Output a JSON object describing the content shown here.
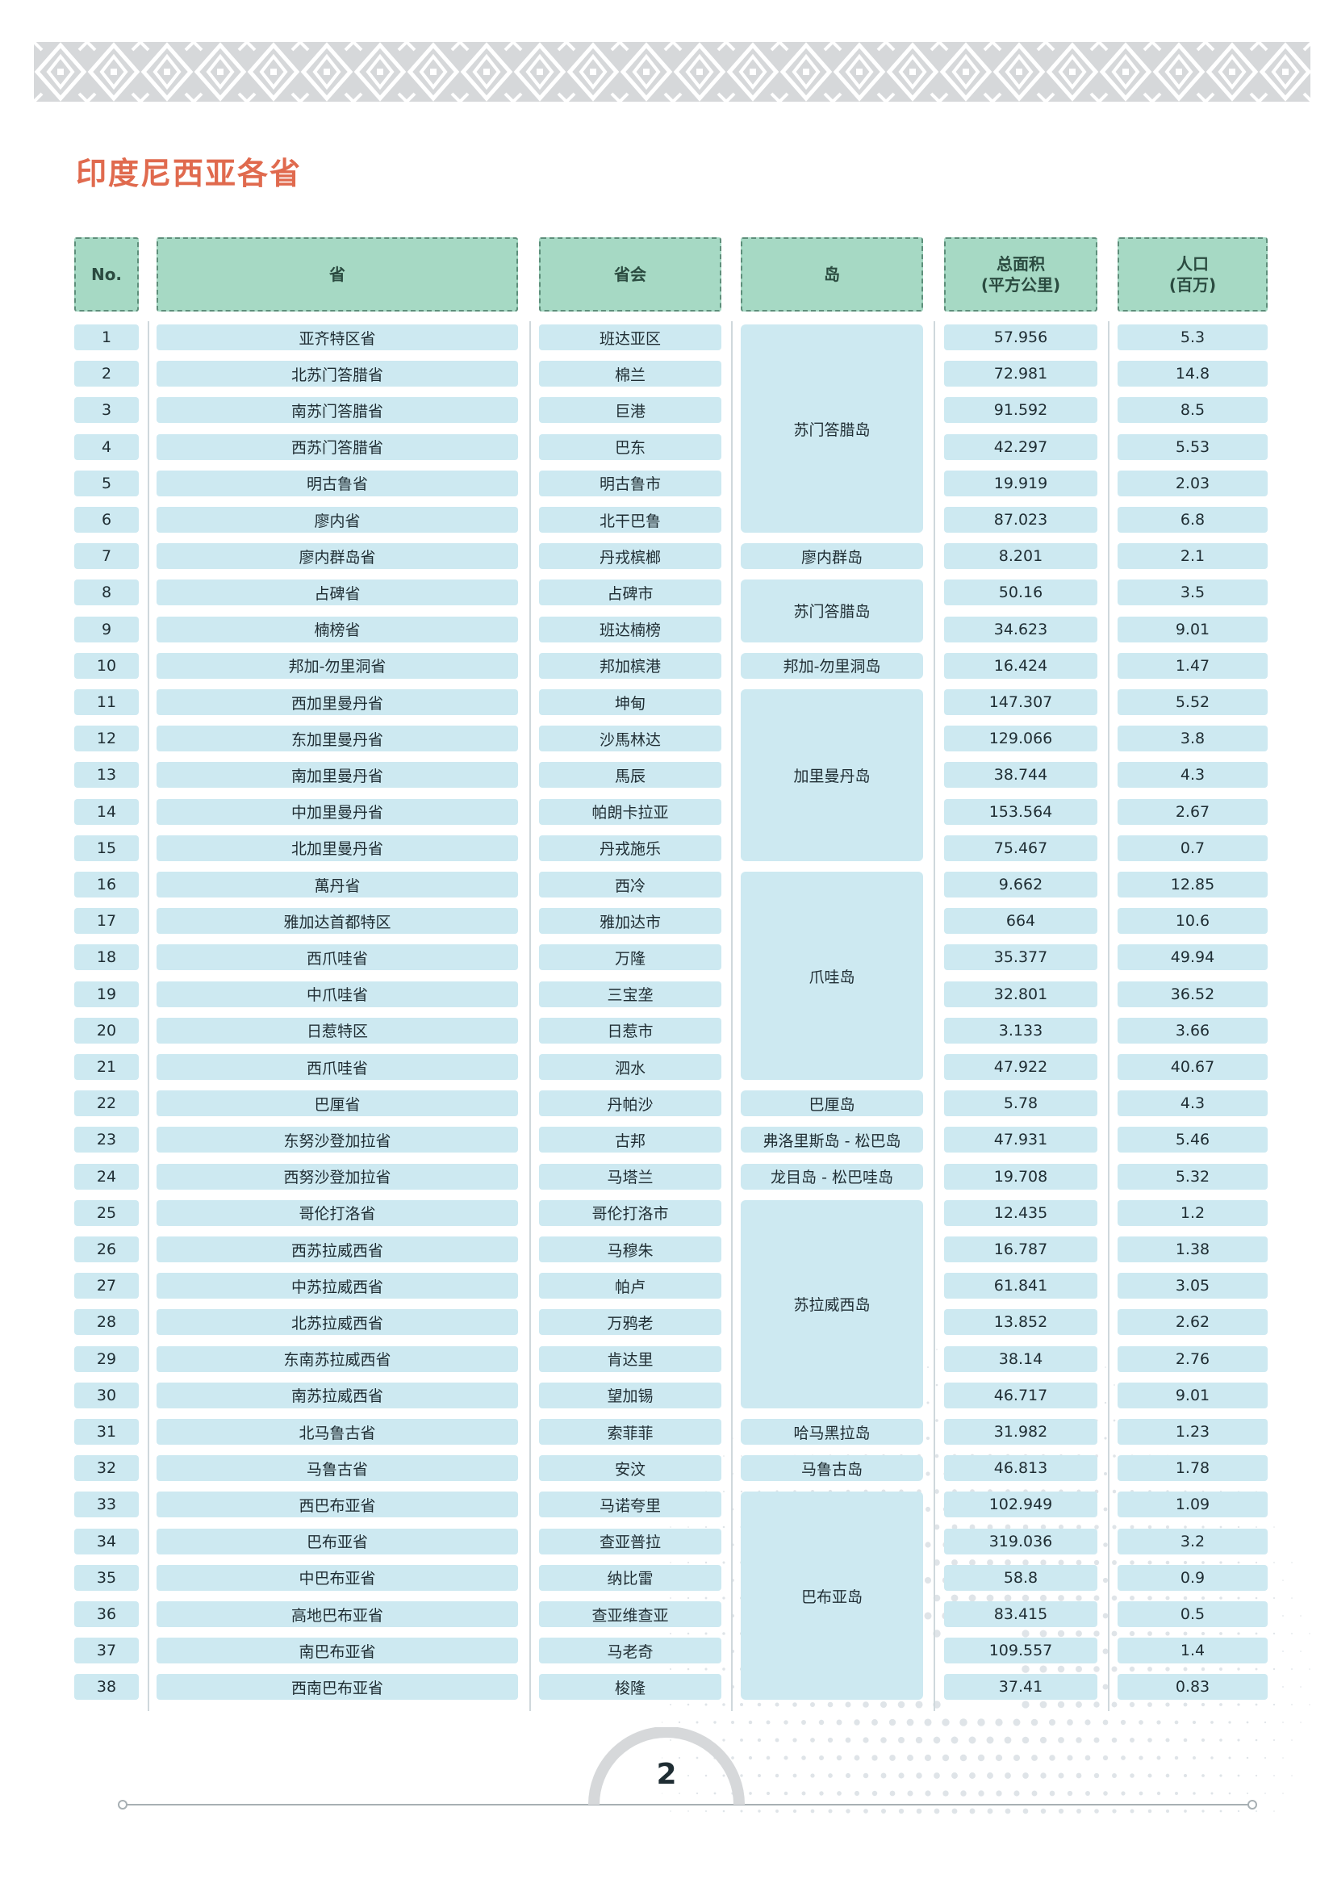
{
  "title": "印度尼西亚各省",
  "page_number": "2",
  "headers": [
    "No.",
    "省",
    "省会",
    "岛",
    "总面积\n(平方公里)",
    "人口\n(百万)"
  ],
  "colors": {
    "title": "#e06a4e",
    "header_bg": "#a6d9c4",
    "cell_bg": "#cde9f1",
    "banner": "#c9ccce"
  },
  "rows": [
    {
      "no": "1",
      "province": "亚齐特区省",
      "capital": "班达亚区",
      "area": "57.956",
      "population": "5.3"
    },
    {
      "no": "2",
      "province": "北苏门答腊省",
      "capital": "棉兰",
      "area": "72.981",
      "population": "14.8"
    },
    {
      "no": "3",
      "province": "南苏门答腊省",
      "capital": "巨港",
      "area": "91.592",
      "population": "8.5"
    },
    {
      "no": "4",
      "province": "西苏门答腊省",
      "capital": "巴东",
      "area": "42.297",
      "population": "5.53"
    },
    {
      "no": "5",
      "province": "明古鲁省",
      "capital": "明古鲁市",
      "area": "19.919",
      "population": "2.03"
    },
    {
      "no": "6",
      "province": "廖内省",
      "capital": "北干巴鲁",
      "area": "87.023",
      "population": "6.8"
    },
    {
      "no": "7",
      "province": "廖内群岛省",
      "capital": "丹戎槟榔",
      "area": "8.201",
      "population": "2.1"
    },
    {
      "no": "8",
      "province": "占碑省",
      "capital": "占碑市",
      "area": "50.16",
      "population": "3.5"
    },
    {
      "no": "9",
      "province": "楠榜省",
      "capital": "班达楠榜",
      "area": "34.623",
      "population": "9.01"
    },
    {
      "no": "10",
      "province": "邦加-勿里洞省",
      "capital": "邦加槟港",
      "area": "16.424",
      "population": "1.47"
    },
    {
      "no": "11",
      "province": "西加里曼丹省",
      "capital": "坤甸",
      "area": "147.307",
      "population": "5.52"
    },
    {
      "no": "12",
      "province": "东加里曼丹省",
      "capital": "沙馬林达",
      "area": "129.066",
      "population": "3.8"
    },
    {
      "no": "13",
      "province": "南加里曼丹省",
      "capital": "馬辰",
      "area": "38.744",
      "population": "4.3"
    },
    {
      "no": "14",
      "province": "中加里曼丹省",
      "capital": "帕朗卡拉亚",
      "area": "153.564",
      "population": "2.67"
    },
    {
      "no": "15",
      "province": "北加里曼丹省",
      "capital": "丹戎施乐",
      "area": "75.467",
      "population": "0.7"
    },
    {
      "no": "16",
      "province": "萬丹省",
      "capital": "西冷",
      "area": "9.662",
      "population": "12.85"
    },
    {
      "no": "17",
      "province": "雅加达首都特区",
      "capital": "雅加达市",
      "area": "664",
      "population": "10.6"
    },
    {
      "no": "18",
      "province": "西爪哇省",
      "capital": "万隆",
      "area": "35.377",
      "population": "49.94"
    },
    {
      "no": "19",
      "province": "中爪哇省",
      "capital": "三宝垄",
      "area": "32.801",
      "population": "36.52"
    },
    {
      "no": "20",
      "province": "日惹特区",
      "capital": "日惹市",
      "area": "3.133",
      "population": "3.66"
    },
    {
      "no": "21",
      "province": "西爪哇省",
      "capital": "泗水",
      "area": "47.922",
      "population": "40.67"
    },
    {
      "no": "22",
      "province": "巴厘省",
      "capital": "丹帕沙",
      "area": "5.78",
      "population": "4.3"
    },
    {
      "no": "23",
      "province": "东努沙登加拉省",
      "capital": "古邦",
      "area": "47.931",
      "population": "5.46"
    },
    {
      "no": "24",
      "province": "西努沙登加拉省",
      "capital": "马塔兰",
      "area": "19.708",
      "population": "5.32"
    },
    {
      "no": "25",
      "province": "哥伦打洛省",
      "capital": "哥伦打洛市",
      "area": "12.435",
      "population": "1.2"
    },
    {
      "no": "26",
      "province": "西苏拉威西省",
      "capital": "马穆朱",
      "area": "16.787",
      "population": "1.38"
    },
    {
      "no": "27",
      "province": "中苏拉威西省",
      "capital": "帕卢",
      "area": "61.841",
      "population": "3.05"
    },
    {
      "no": "28",
      "province": "北苏拉威西省",
      "capital": "万鸦老",
      "area": "13.852",
      "population": "2.62"
    },
    {
      "no": "29",
      "province": "东南苏拉威西省",
      "capital": "肯达里",
      "area": "38.14",
      "population": "2.76"
    },
    {
      "no": "30",
      "province": "南苏拉威西省",
      "capital": "望加锡",
      "area": "46.717",
      "population": "9.01"
    },
    {
      "no": "31",
      "province": "北马鲁古省",
      "capital": "索菲菲",
      "area": "31.982",
      "population": "1.23"
    },
    {
      "no": "32",
      "province": "马鲁古省",
      "capital": "安汶",
      "area": "46.813",
      "population": "1.78"
    },
    {
      "no": "33",
      "province": "西巴布亚省",
      "capital": "马诺夸里",
      "area": "102.949",
      "population": "1.09"
    },
    {
      "no": "34",
      "province": "巴布亚省",
      "capital": "查亚普拉",
      "area": "319.036",
      "population": "3.2"
    },
    {
      "no": "35",
      "province": "中巴布亚省",
      "capital": "纳比雷",
      "area": "58.8",
      "population": "0.9"
    },
    {
      "no": "36",
      "province": "高地巴布亚省",
      "capital": "查亚维查亚",
      "area": "83.415",
      "population": "0.5"
    },
    {
      "no": "37",
      "province": "南巴布亚省",
      "capital": "马老奇",
      "area": "109.557",
      "population": "1.4"
    },
    {
      "no": "38",
      "province": "西南巴布亚省",
      "capital": "梭隆",
      "area": "37.41",
      "population": "0.83"
    }
  ],
  "islands": [
    {
      "name": "苏门答腊岛",
      "first_row": 1,
      "last_row": 6
    },
    {
      "name": "廖内群岛",
      "first_row": 7,
      "last_row": 7
    },
    {
      "name": "苏门答腊岛",
      "first_row": 8,
      "last_row": 9
    },
    {
      "name": "邦加-勿里洞岛",
      "first_row": 10,
      "last_row": 10
    },
    {
      "name": "加里曼丹岛",
      "first_row": 11,
      "last_row": 15
    },
    {
      "name": "爪哇岛",
      "first_row": 16,
      "last_row": 21
    },
    {
      "name": "巴厘岛",
      "first_row": 22,
      "last_row": 22
    },
    {
      "name": "弗洛里斯岛 - 松巴岛",
      "first_row": 23,
      "last_row": 23
    },
    {
      "name": "龙目岛 - 松巴哇岛",
      "first_row": 24,
      "last_row": 24
    },
    {
      "name": "苏拉威西岛",
      "first_row": 25,
      "last_row": 30
    },
    {
      "name": "哈马黑拉岛",
      "first_row": 31,
      "last_row": 31
    },
    {
      "name": "马鲁古岛",
      "first_row": 32,
      "last_row": 32
    },
    {
      "name": "巴布亚岛",
      "first_row": 33,
      "last_row": 38
    }
  ]
}
